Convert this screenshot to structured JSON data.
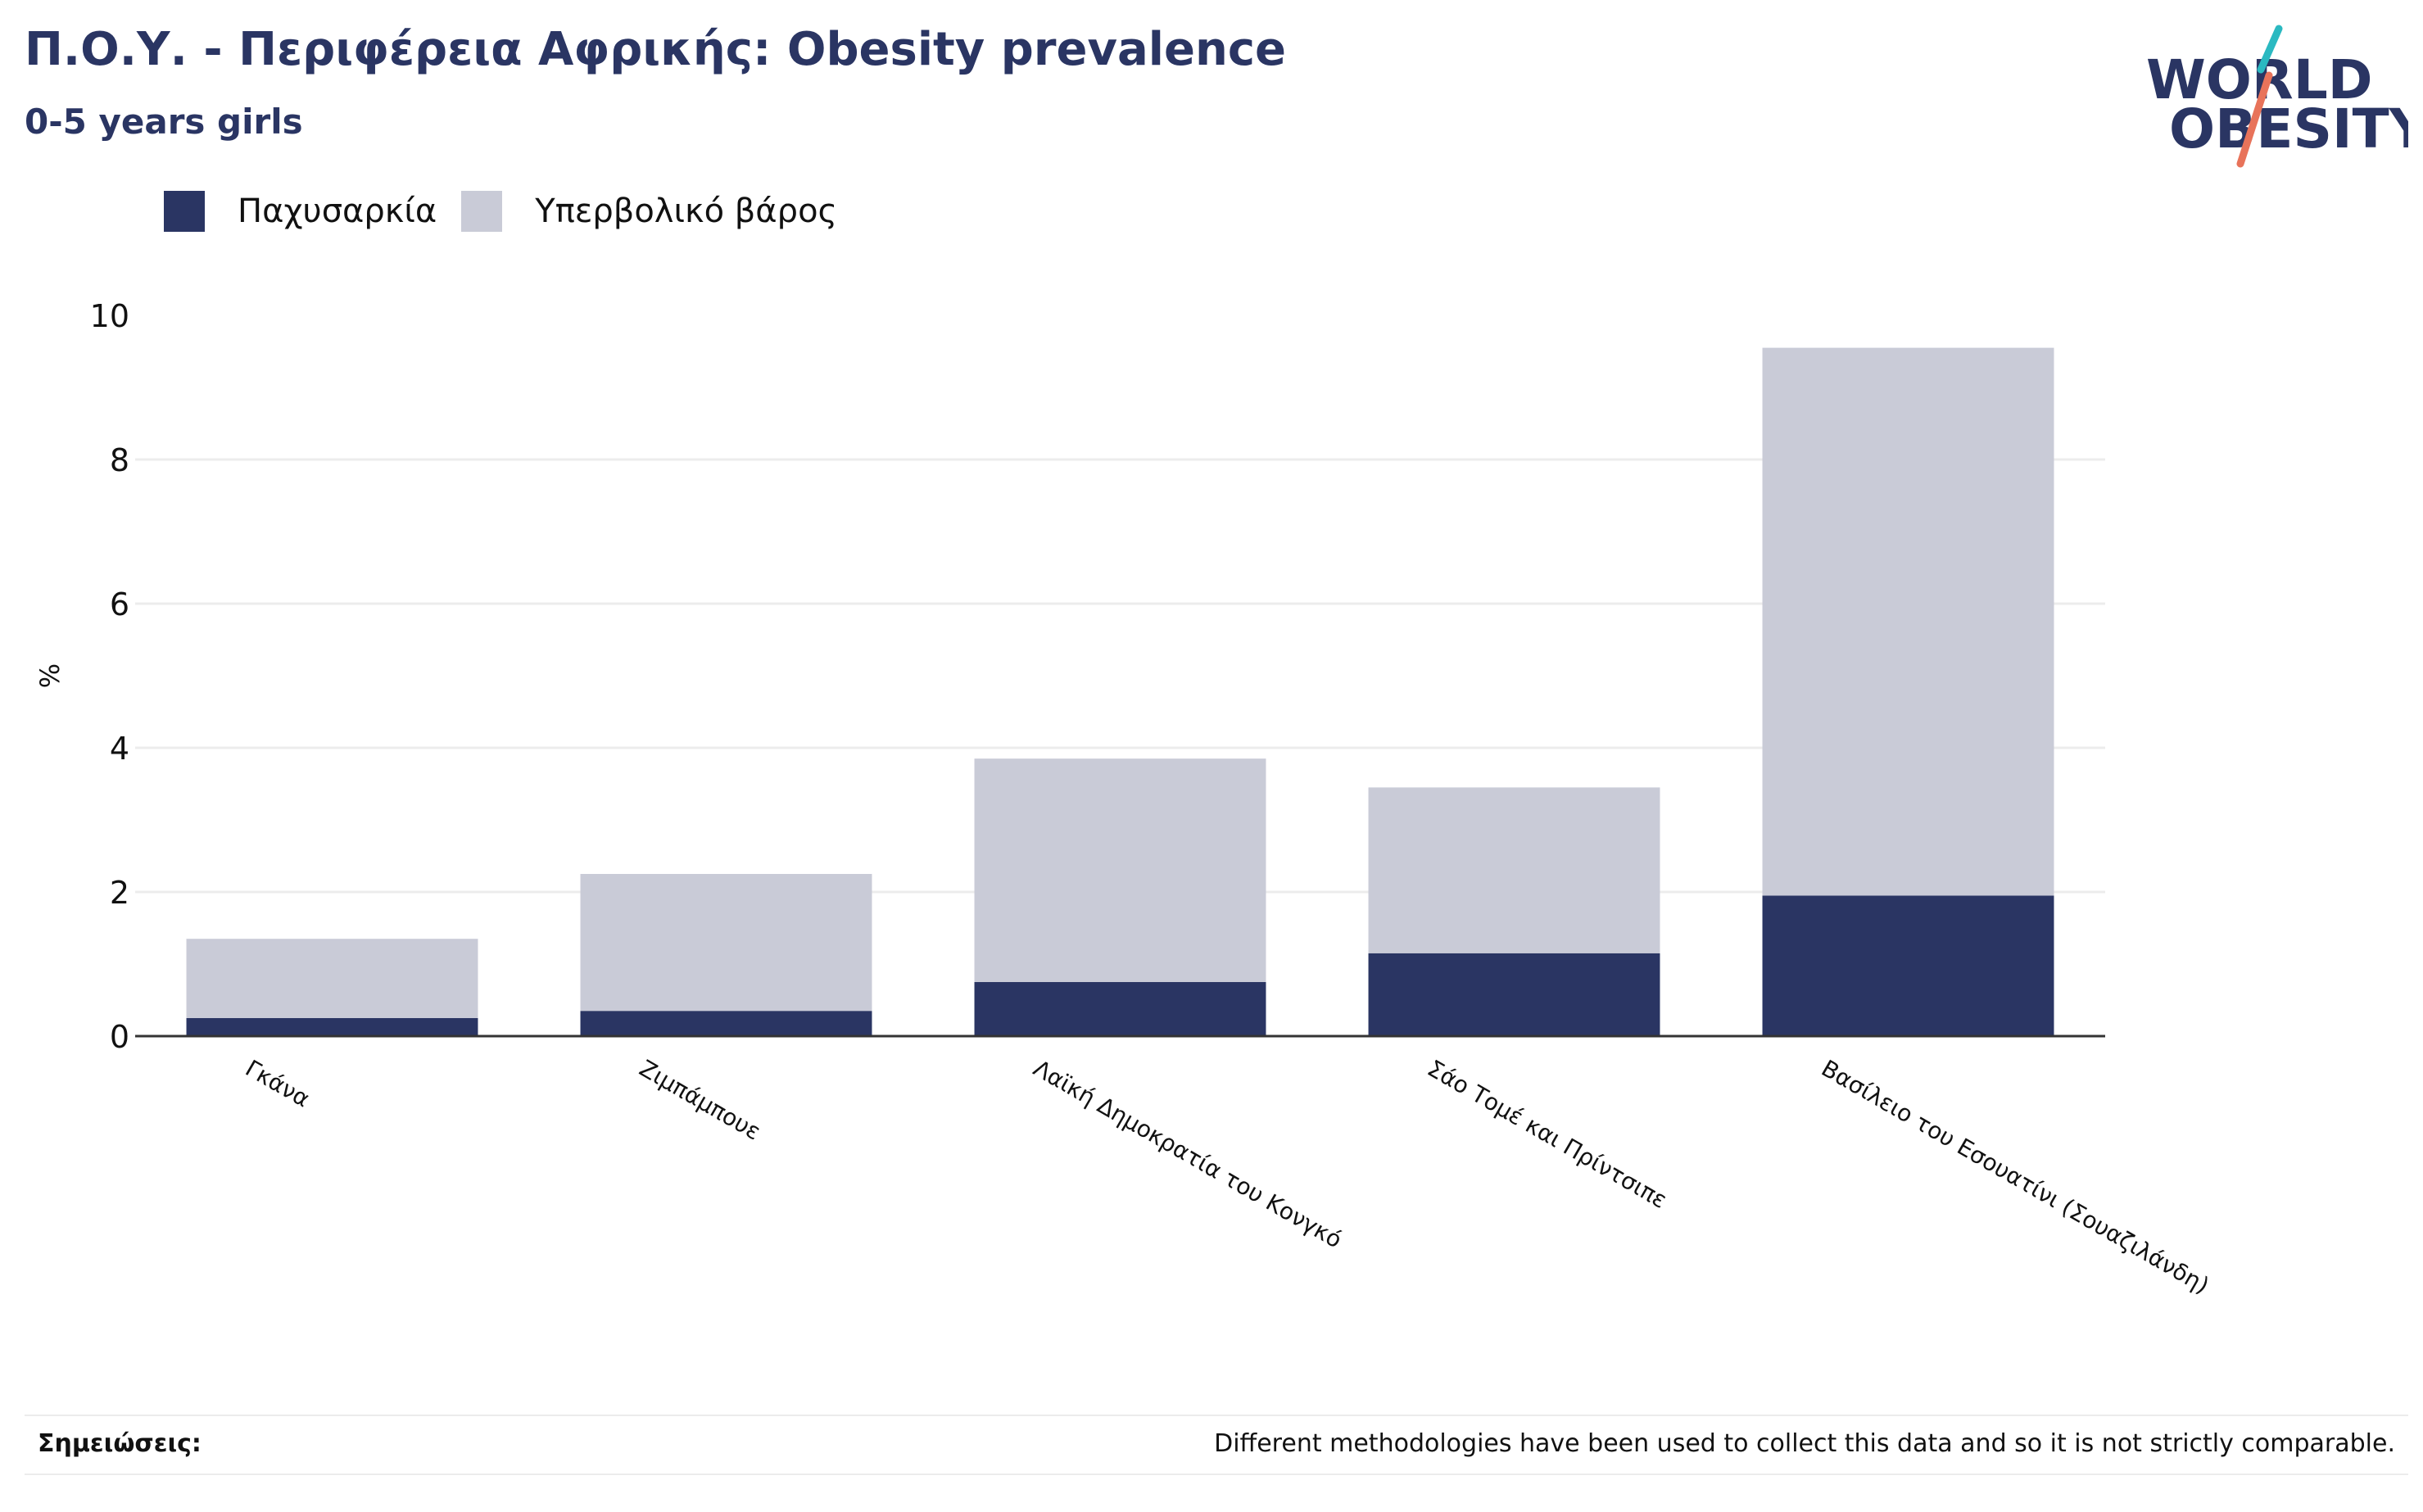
{
  "header": {
    "title": "Π.Ο.Υ. - Περιφέρεια Αφρικής: Obesity prevalence",
    "subtitle": "0-5 years girls"
  },
  "logo": {
    "line1": "WORLD",
    "line2": "OBESITY",
    "colors": {
      "text": "#2a3563",
      "teal": "#2bb9c1",
      "coral": "#e8735a"
    }
  },
  "colors": {
    "obesity": "#2a3563",
    "overweight": "#c9cbd7",
    "grid": "#ececec",
    "axis": "#333333",
    "text": "#111111"
  },
  "chart_data": {
    "type": "bar",
    "stacked": true,
    "categories": [
      "Γκάνα",
      "Ζιμπάμπουε",
      "Λαϊκή Δημοκρατία του Κονγκό",
      "Σάο Τομέ και Πρίντσιπε",
      "Βασίλειο του Εσουατίνι (Σουαζιλάνδη)"
    ],
    "series": [
      {
        "name": "Παχυσαρκία",
        "values": [
          0.25,
          0.35,
          0.75,
          1.15,
          1.95
        ]
      },
      {
        "name": "Υπερβολικό βάρος",
        "values": [
          1.1,
          1.9,
          3.1,
          2.3,
          7.6
        ]
      }
    ],
    "ylabel": "%",
    "xlabel": "",
    "ylim": [
      0,
      10
    ],
    "yticks": [
      "0",
      "2",
      "4",
      "6",
      "8",
      "10"
    ],
    "grid": true,
    "legend_position": "top-left"
  },
  "footer": {
    "notes_label": "Σημειώσεις:",
    "notes_text": "Different methodologies have been used to collect this data and so it is not strictly comparable."
  }
}
